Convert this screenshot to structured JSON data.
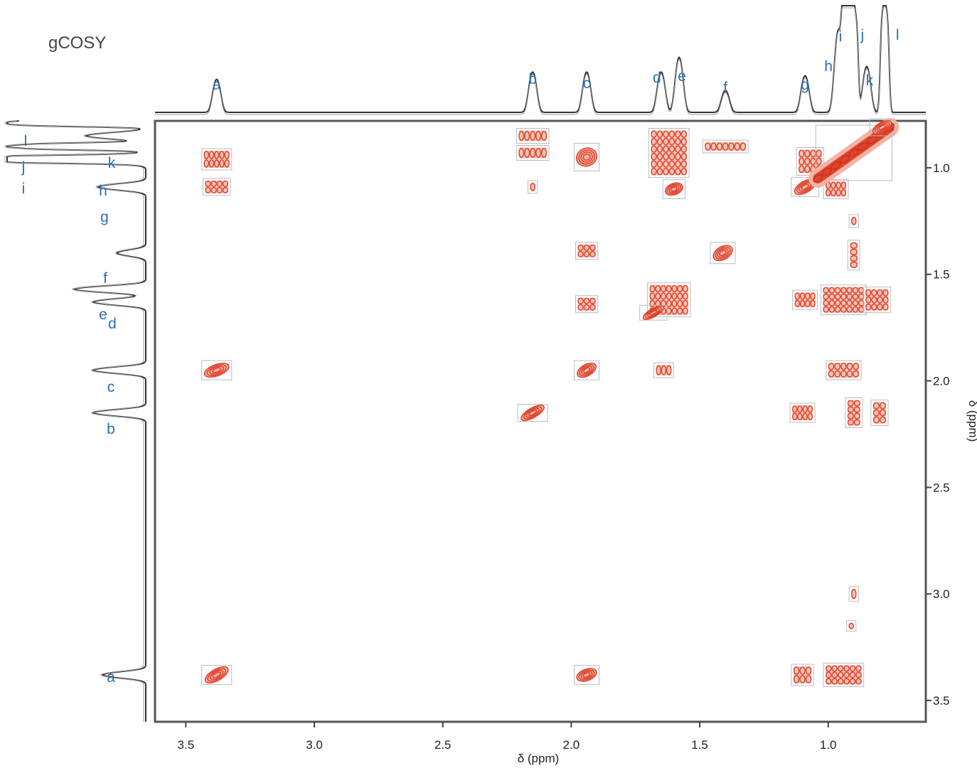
{
  "chart_data": {
    "type": "heatmap",
    "title": "gCOSY",
    "xlabel": "δ (ppm)",
    "ylabel": "δ (ppm)",
    "xlim": [
      3.62,
      0.62
    ],
    "ylim": [
      0.78,
      3.6
    ],
    "x_ticks": [
      {
        "value": 3.5,
        "label": "3.5"
      },
      {
        "value": 3.0,
        "label": "3.0"
      },
      {
        "value": 2.5,
        "label": "2.5"
      },
      {
        "value": 2.0,
        "label": "2.0"
      },
      {
        "value": 1.5,
        "label": "1.5"
      },
      {
        "value": 1.0,
        "label": "1.0"
      }
    ],
    "y_ticks": [
      {
        "value": 1.0,
        "label": "1.0"
      },
      {
        "value": 1.5,
        "label": "1.5"
      },
      {
        "value": 2.0,
        "label": "2.0"
      },
      {
        "value": 2.5,
        "label": "2.5"
      },
      {
        "value": 3.0,
        "label": "3.0"
      },
      {
        "value": 3.5,
        "label": "3.5"
      }
    ],
    "peaks_top": [
      {
        "label": "a",
        "shift": 3.38
      },
      {
        "label": "b",
        "shift": 2.15
      },
      {
        "label": "c",
        "shift": 1.94
      },
      {
        "label": "d",
        "shift": 1.65
      },
      {
        "label": "e",
        "shift": 1.58
      },
      {
        "label": "f",
        "shift": 1.4
      },
      {
        "label": "g",
        "shift": 1.09
      },
      {
        "label": "h",
        "shift": 0.96
      },
      {
        "label": "i",
        "shift": 0.93
      },
      {
        "label": "j",
        "shift": 0.9
      },
      {
        "label": "k",
        "shift": 0.85
      },
      {
        "label": "l",
        "shift": 0.78
      }
    ],
    "peaks_side": [
      {
        "label": "l",
        "shift": 0.79
      },
      {
        "label": "k",
        "shift": 0.85
      },
      {
        "label": "j",
        "shift": 0.9
      },
      {
        "label": "h",
        "shift": 0.96
      },
      {
        "label": "i",
        "shift": 0.96
      },
      {
        "label": "g",
        "shift": 1.09
      },
      {
        "label": "f",
        "shift": 1.4
      },
      {
        "label": "e",
        "shift": 1.57
      },
      {
        "label": "d",
        "shift": 1.63
      },
      {
        "label": "c",
        "shift": 1.95
      },
      {
        "label": "b",
        "shift": 2.15
      },
      {
        "label": "a",
        "shift": 3.38
      }
    ],
    "cross_peaks": [
      {
        "x": 3.38,
        "y": 0.96,
        "w": 0.1,
        "h": 0.08,
        "kind": "multiplet"
      },
      {
        "x": 3.38,
        "y": 1.09,
        "w": 0.09,
        "h": 0.06,
        "kind": "multiplet"
      },
      {
        "x": 3.38,
        "y": 1.95,
        "w": 0.1,
        "h": 0.07,
        "kind": "ring"
      },
      {
        "x": 3.38,
        "y": 3.38,
        "w": 0.1,
        "h": 0.07,
        "kind": "diag"
      },
      {
        "x": 2.15,
        "y": 0.85,
        "w": 0.11,
        "h": 0.05,
        "kind": "multiplet"
      },
      {
        "x": 2.15,
        "y": 0.93,
        "w": 0.11,
        "h": 0.05,
        "kind": "multiplet"
      },
      {
        "x": 2.15,
        "y": 1.09,
        "w": 0.02,
        "h": 0.04,
        "kind": "multiplet"
      },
      {
        "x": 2.15,
        "y": 2.15,
        "w": 0.1,
        "h": 0.06,
        "kind": "diag"
      },
      {
        "x": 1.94,
        "y": 0.95,
        "w": 0.08,
        "h": 0.11,
        "kind": "ring"
      },
      {
        "x": 1.94,
        "y": 1.39,
        "w": 0.07,
        "h": 0.06,
        "kind": "small"
      },
      {
        "x": 1.94,
        "y": 1.64,
        "w": 0.07,
        "h": 0.06,
        "kind": "multiplet"
      },
      {
        "x": 1.94,
        "y": 1.95,
        "w": 0.08,
        "h": 0.07,
        "kind": "diag"
      },
      {
        "x": 1.94,
        "y": 3.38,
        "w": 0.08,
        "h": 0.07,
        "kind": "ring"
      },
      {
        "x": 1.62,
        "y": 0.93,
        "w": 0.14,
        "h": 0.21,
        "kind": "multiplet"
      },
      {
        "x": 1.6,
        "y": 1.1,
        "w": 0.07,
        "h": 0.07,
        "kind": "ring"
      },
      {
        "x": 1.62,
        "y": 1.62,
        "w": 0.15,
        "h": 0.14,
        "kind": "multiplet"
      },
      {
        "x": 1.68,
        "y": 1.68,
        "w": 0.09,
        "h": 0.05,
        "kind": "diag"
      },
      {
        "x": 1.64,
        "y": 1.95,
        "w": 0.06,
        "h": 0.05,
        "kind": "multiplet"
      },
      {
        "x": 1.4,
        "y": 0.9,
        "w": 0.16,
        "h": 0.04,
        "kind": "multiplet"
      },
      {
        "x": 1.41,
        "y": 1.4,
        "w": 0.08,
        "h": 0.08,
        "kind": "diag"
      },
      {
        "x": 0.9,
        "y": 1.25,
        "w": 0.02,
        "h": 0.04,
        "kind": "multiplet"
      },
      {
        "x": 0.9,
        "y": 1.41,
        "w": 0.03,
        "h": 0.12,
        "kind": "multiplet"
      },
      {
        "x": 1.07,
        "y": 0.97,
        "w": 0.09,
        "h": 0.11,
        "kind": "multiplet"
      },
      {
        "x": 1.09,
        "y": 1.09,
        "w": 0.09,
        "h": 0.07,
        "kind": "diag"
      },
      {
        "x": 1.09,
        "y": 1.62,
        "w": 0.08,
        "h": 0.07,
        "kind": "multiplet"
      },
      {
        "x": 1.1,
        "y": 2.15,
        "w": 0.08,
        "h": 0.07,
        "kind": "multiplet"
      },
      {
        "x": 1.1,
        "y": 3.38,
        "w": 0.07,
        "h": 0.08,
        "kind": "multiplet"
      },
      {
        "x": 0.97,
        "y": 1.1,
        "w": 0.08,
        "h": 0.07,
        "kind": "multiplet"
      },
      {
        "x": 0.94,
        "y": 1.62,
        "w": 0.16,
        "h": 0.12,
        "kind": "multiplet"
      },
      {
        "x": 0.81,
        "y": 1.62,
        "w": 0.09,
        "h": 0.1,
        "kind": "multiplet"
      },
      {
        "x": 0.94,
        "y": 1.95,
        "w": 0.12,
        "h": 0.07,
        "kind": "multiplet"
      },
      {
        "x": 0.9,
        "y": 2.15,
        "w": 0.05,
        "h": 0.12,
        "kind": "multiplet"
      },
      {
        "x": 0.8,
        "y": 2.15,
        "w": 0.05,
        "h": 0.1,
        "kind": "multiplet"
      },
      {
        "x": 0.9,
        "y": 3.0,
        "w": 0.02,
        "h": 0.05,
        "kind": "multiplet"
      },
      {
        "x": 0.91,
        "y": 3.15,
        "w": 0.02,
        "h": 0.03,
        "kind": "small"
      },
      {
        "x": 0.94,
        "y": 3.38,
        "w": 0.14,
        "h": 0.09,
        "kind": "multiplet"
      },
      {
        "x": 0.9,
        "y": 0.93,
        "w": 0.28,
        "h": 0.24,
        "kind": "diag-band"
      },
      {
        "x": 0.79,
        "y": 0.81,
        "w": 0.08,
        "h": 0.06,
        "kind": "diag"
      }
    ]
  }
}
